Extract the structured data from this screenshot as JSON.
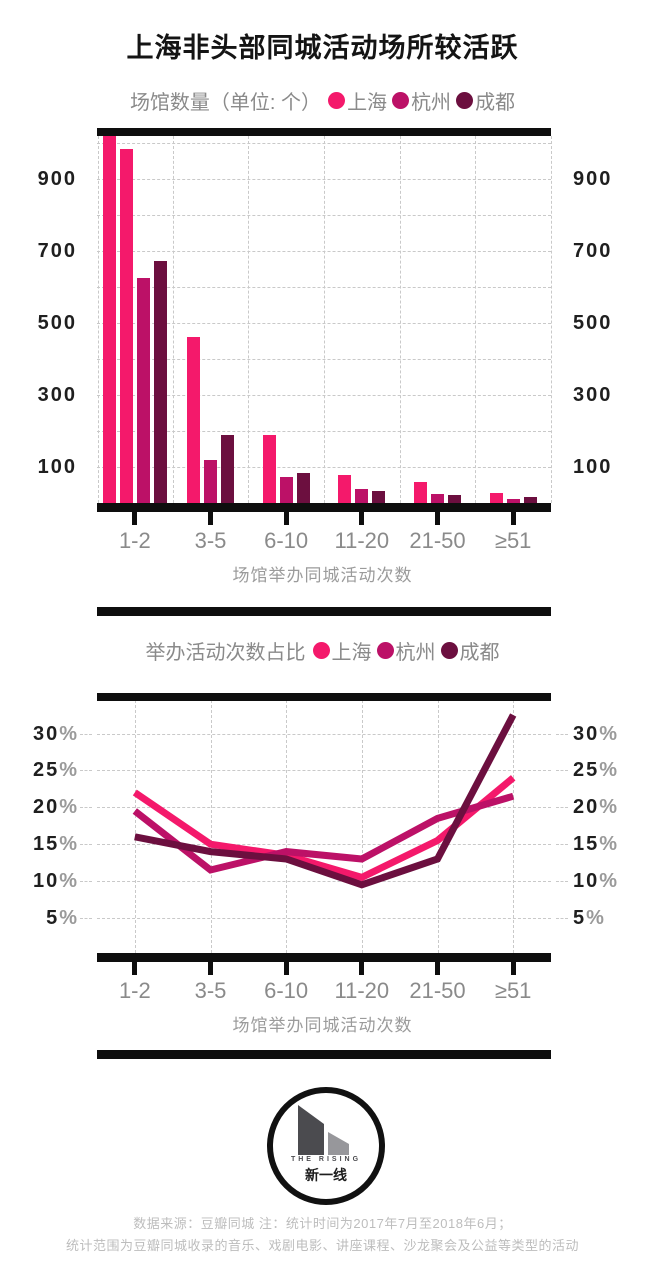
{
  "header": {
    "title": "上海非头部同城活动场所较活跃"
  },
  "colors": {
    "shanghai": "#F4196B",
    "hangzhou": "#BC1167",
    "chengdu": "#6C0F3F",
    "axis": "#0E0E0E",
    "grid": "#C9C9C9",
    "label_gray": "#8A8A8A",
    "footer_gray": "#BDBDBD"
  },
  "chart_data": [
    {
      "type": "bar",
      "legend_title": "场馆数量（单位: 个）",
      "categories": [
        "1-2",
        "3-5",
        "6-10",
        "11-20",
        "21-50",
        "≥51"
      ],
      "series": [
        {
          "name": "上海",
          "color": "#F4196B",
          "values": [
            1020,
            460,
            190,
            78,
            58,
            29
          ]
        },
        {
          "name": "杭州",
          "color": "#BC1167",
          "values": [
            625,
            120,
            72,
            39,
            25,
            11
          ]
        },
        {
          "name": "成都",
          "color": "#6C0F3F",
          "values": [
            672,
            190,
            83,
            34,
            22,
            17
          ]
        }
      ],
      "extra_bars": [
        {
          "category": "1-2",
          "after_series": "上海",
          "color": "#F4196B",
          "value": 985,
          "note": "second pink bar shown in the 1-2 group; tallest bar is clipped at plot top"
        }
      ],
      "yticks": [
        100,
        300,
        500,
        700,
        900
      ],
      "ylim": [
        0,
        1020
      ],
      "grid_step": 100,
      "grid": true,
      "xlabel": "场馆举办同城活动次数"
    },
    {
      "type": "line",
      "legend_title": "举办活动次数占比",
      "categories": [
        "1-2",
        "3-5",
        "6-10",
        "11-20",
        "21-50",
        "≥51"
      ],
      "series": [
        {
          "name": "上海",
          "color": "#F4196B",
          "values": [
            22,
            15,
            13.5,
            10.5,
            15.5,
            24
          ]
        },
        {
          "name": "杭州",
          "color": "#BC1167",
          "values": [
            19.5,
            11.5,
            14,
            13,
            18.5,
            21.5
          ]
        },
        {
          "name": "成都",
          "color": "#6C0F3F",
          "values": [
            16,
            14,
            13,
            9.5,
            13,
            32.5
          ]
        }
      ],
      "yticks": [
        5,
        10,
        15,
        20,
        25,
        30
      ],
      "ytick_suffix": "%",
      "ylim": [
        0,
        34.5
      ],
      "grid": true,
      "xlabel": "场馆举办同城活动次数"
    }
  ],
  "footer": {
    "logo": {
      "name_en": "THE RISING",
      "name_cn": "新一线"
    },
    "source_line1": "数据来源：豆瓣同城  注：统计时间为2017年7月至2018年6月；",
    "source_line2": "统计范围为豆瓣同城收录的音乐、戏剧电影、讲座课程、沙龙聚会及公益等类型的活动"
  }
}
